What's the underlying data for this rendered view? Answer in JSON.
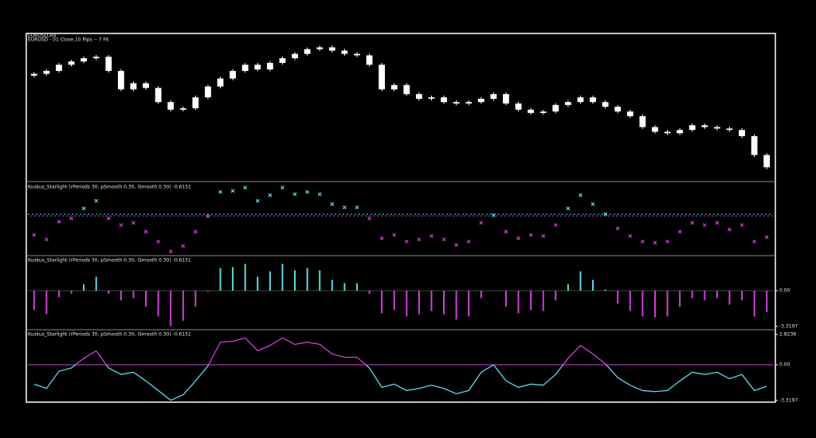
{
  "chart_data": [
    {
      "type": "candlestick",
      "title": "EURUSD,H4",
      "subtitle": "EURUSD - 01 Close,10 Pips -- 7 Fit",
      "color": "#ffffff",
      "ylim": [
        1.08,
        1.12
      ],
      "open": [
        1.1088,
        1.1093,
        1.1101,
        1.1118,
        1.1127,
        1.1136,
        1.114,
        1.1101,
        1.105,
        1.1067,
        1.1054,
        1.1015,
        1.0994,
        1.0998,
        1.1028,
        1.1058,
        1.108,
        1.1101,
        1.1118,
        1.1105,
        1.1123,
        1.1136,
        1.1148,
        1.1161,
        1.1166,
        1.1157,
        1.1148,
        1.1144,
        1.1118,
        1.105,
        1.1062,
        1.1037,
        1.1024,
        1.1028,
        1.1015,
        1.1011,
        1.1015,
        1.1024,
        1.1037,
        1.1011,
        1.0994,
        1.0985,
        1.0989,
        1.1007,
        1.1015,
        1.1028,
        1.1015,
        1.1002,
        1.0989,
        1.0976,
        1.0946,
        1.0933,
        1.0929,
        1.0938,
        1.0951,
        1.0946,
        1.0942,
        1.0938,
        1.0921,
        1.0869
      ],
      "high": [
        1.1098,
        1.1106,
        1.1123,
        1.1132,
        1.1141,
        1.1145,
        1.1145,
        1.1106,
        1.1072,
        1.1072,
        1.1059,
        1.102,
        1.1003,
        1.1033,
        1.1063,
        1.1085,
        1.1106,
        1.1123,
        1.1123,
        1.1128,
        1.1141,
        1.1153,
        1.1166,
        1.1171,
        1.1171,
        1.1162,
        1.1153,
        1.1149,
        1.1123,
        1.1067,
        1.1067,
        1.1042,
        1.1033,
        1.1033,
        1.102,
        1.102,
        1.1029,
        1.1042,
        1.1042,
        1.1016,
        1.0999,
        1.0994,
        1.1012,
        1.102,
        1.1033,
        1.1033,
        1.102,
        1.1007,
        1.0994,
        1.0981,
        1.0951,
        1.0938,
        1.0943,
        1.0956,
        1.0956,
        1.0951,
        1.0947,
        1.0943,
        1.0926,
        1.0874
      ],
      "low": [
        1.1083,
        1.1088,
        1.1096,
        1.1113,
        1.1122,
        1.1131,
        1.1096,
        1.1045,
        1.1045,
        1.1049,
        1.101,
        1.0989,
        1.0989,
        1.0993,
        1.1023,
        1.1053,
        1.1075,
        1.1096,
        1.11,
        1.11,
        1.1118,
        1.1131,
        1.1143,
        1.1156,
        1.1152,
        1.1143,
        1.1139,
        1.1113,
        1.1045,
        1.1045,
        1.1032,
        1.1019,
        1.1019,
        1.101,
        1.1006,
        1.1006,
        1.101,
        1.1019,
        1.1006,
        1.0989,
        1.098,
        1.098,
        1.0984,
        1.1002,
        1.101,
        1.101,
        1.0997,
        1.0984,
        1.0971,
        1.0941,
        1.0928,
        1.0924,
        1.0924,
        1.0933,
        1.0941,
        1.0937,
        1.0933,
        1.0916,
        1.0864,
        1.083
      ],
      "close": [
        1.1093,
        1.1101,
        1.1118,
        1.1127,
        1.1136,
        1.114,
        1.1101,
        1.105,
        1.1067,
        1.1054,
        1.1015,
        1.0994,
        1.0998,
        1.1028,
        1.1058,
        1.108,
        1.1101,
        1.1118,
        1.1105,
        1.1123,
        1.1136,
        1.1148,
        1.1161,
        1.1166,
        1.1157,
        1.1148,
        1.1144,
        1.1118,
        1.105,
        1.1062,
        1.1037,
        1.1024,
        1.1028,
        1.1015,
        1.1011,
        1.1015,
        1.1024,
        1.1037,
        1.1011,
        1.0994,
        1.0985,
        1.0989,
        1.1007,
        1.1015,
        1.1028,
        1.1015,
        1.1002,
        1.0989,
        1.0976,
        1.0946,
        1.0933,
        1.0929,
        1.0938,
        1.0951,
        1.0946,
        1.0942,
        1.0938,
        1.0921,
        1.0869,
        1.0835
      ]
    },
    {
      "type": "marker",
      "title": "Kuskus_Starlight  (rPeriods 30, pSmooth 0.30, iSmooth 0.30)   -0.6151",
      "colors": {
        "up": "#5fd8e6",
        "down": "#cf3fd8"
      },
      "ylim": [
        -3.6,
        2.9
      ],
      "values": [
        -1.8,
        -2.2,
        -0.6,
        -0.3,
        0.6,
        1.3,
        -0.3,
        -0.9,
        -0.7,
        -1.5,
        -2.4,
        -3.3,
        -2.8,
        -1.5,
        -0.1,
        2.1,
        2.2,
        2.5,
        1.3,
        1.8,
        2.5,
        1.9,
        2.1,
        1.9,
        1.0,
        0.7,
        0.7,
        -0.3,
        -2.1,
        -1.8,
        -2.4,
        -2.2,
        -1.9,
        -2.2,
        -2.7,
        -2.4,
        -0.7,
        0.0,
        -1.5,
        -2.1,
        -1.8,
        -1.9,
        -0.9,
        0.6,
        1.8,
        1.0,
        0.1,
        -1.2,
        -1.9,
        -2.4,
        -2.5,
        -2.4,
        -1.5,
        -0.7,
        -0.9,
        -0.7,
        -1.3,
        -0.9,
        -2.4,
        -2.0
      ]
    },
    {
      "type": "column",
      "title": "Kuskus_Starlight  (rPeriods 30, pSmooth 0.30, iSmooth 0.30)   -0.6151",
      "colors": {
        "up": "#5fd8e6",
        "down": "#cf3fd8"
      },
      "ylim": [
        -3.56,
        3.19
      ],
      "yticks": [
        {
          "value": 0,
          "label": "0.00"
        },
        -3.3197
      ],
      "values": [
        -1.8,
        -2.2,
        -0.6,
        -0.3,
        0.6,
        1.3,
        -0.3,
        -0.9,
        -0.7,
        -1.5,
        -2.4,
        -3.3,
        -2.8,
        -1.5,
        -0.1,
        2.1,
        2.2,
        2.5,
        1.3,
        1.8,
        2.5,
        1.9,
        2.1,
        1.9,
        1.0,
        0.7,
        0.7,
        -0.3,
        -2.1,
        -1.8,
        -2.4,
        -2.2,
        -1.9,
        -2.2,
        -2.7,
        -2.4,
        -0.7,
        0.0,
        -1.5,
        -2.1,
        -1.8,
        -1.9,
        -0.9,
        0.6,
        1.8,
        1.0,
        0.1,
        -1.2,
        -1.9,
        -2.4,
        -2.5,
        -2.4,
        -1.5,
        -0.7,
        -0.9,
        -0.7,
        -1.3,
        -0.9,
        -2.4,
        -2.0
      ]
    },
    {
      "type": "line",
      "title": "Kuskus_Starlight  (rPeriods 30, pSmooth 0.30, iSmooth 0.30)   -0.6151",
      "colors": {
        "up": "#cf3fd8",
        "down": "#5fd8e6"
      },
      "ylim": [
        -3.48,
        3.19
      ],
      "yticks": [
        2.8238,
        {
          "value": 0,
          "label": "0.00"
        },
        -3.3197
      ],
      "values": [
        -1.8,
        -2.2,
        -0.6,
        -0.3,
        0.6,
        1.3,
        -0.3,
        -0.9,
        -0.7,
        -1.5,
        -2.4,
        -3.3,
        -2.8,
        -1.5,
        -0.1,
        2.1,
        2.2,
        2.5,
        1.3,
        1.8,
        2.5,
        1.9,
        2.1,
        1.9,
        1.0,
        0.7,
        0.7,
        -0.3,
        -2.1,
        -1.8,
        -2.4,
        -2.2,
        -1.9,
        -2.2,
        -2.7,
        -2.4,
        -0.7,
        0.0,
        -1.5,
        -2.1,
        -1.8,
        -1.9,
        -0.9,
        0.6,
        1.8,
        1.0,
        0.1,
        -1.2,
        -1.9,
        -2.4,
        -2.5,
        -2.4,
        -1.5,
        -0.7,
        -0.9,
        -0.7,
        -1.3,
        -0.9,
        -2.4,
        -2.0
      ]
    }
  ]
}
